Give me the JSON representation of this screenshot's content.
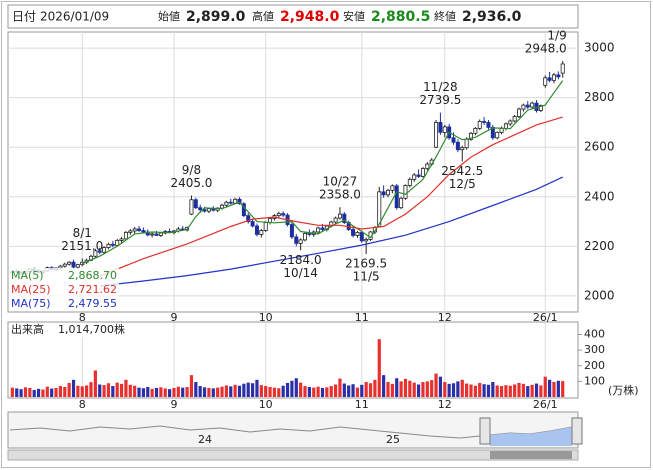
{
  "header": {
    "date_label": "日付",
    "date": "2026/01/09",
    "open_label": "始値",
    "open": "2,899.0",
    "high_label": "高値",
    "high": "2,948.0",
    "low_label": "安値",
    "low": "2,880.5",
    "close_label": "終値",
    "close": "2,936.0"
  },
  "chart_data": [
    {
      "type": "candlestick",
      "up_color": "#ffffff",
      "down_color": "#1c2f9e",
      "grid": true,
      "xlim": [
        -1,
        129.5
      ],
      "ylim": [
        1935,
        3065
      ],
      "yticks": [
        2000,
        2200,
        2400,
        2600,
        2800,
        3000
      ],
      "xticks": [
        {
          "value": 16,
          "label": "8"
        },
        {
          "value": 37,
          "label": "9"
        },
        {
          "value": 58,
          "label": "10"
        },
        {
          "value": 80,
          "label": "11"
        },
        {
          "value": 99,
          "label": "12"
        },
        {
          "value": 122,
          "label": "26/1"
        }
      ],
      "ohlc": [
        [
          2095,
          2105,
          2088,
          2100
        ],
        [
          2100,
          2110,
          2092,
          2096
        ],
        [
          2096,
          2104,
          2085,
          2090
        ],
        [
          2090,
          2102,
          2086,
          2098
        ],
        [
          2098,
          2112,
          2094,
          2108
        ],
        [
          2108,
          2115,
          2098,
          2102
        ],
        [
          2102,
          2108,
          2090,
          2094
        ],
        [
          2094,
          2104,
          2088,
          2100
        ],
        [
          2100,
          2118,
          2098,
          2114
        ],
        [
          2114,
          2120,
          2102,
          2106
        ],
        [
          2106,
          2116,
          2100,
          2112
        ],
        [
          2112,
          2125,
          2108,
          2120
        ],
        [
          2120,
          2134,
          2114,
          2128
        ],
        [
          2128,
          2140,
          2122,
          2136
        ],
        [
          2136,
          2146,
          2110,
          2116
        ],
        [
          2116,
          2130,
          2108,
          2126
        ],
        [
          2126,
          2151,
          2120,
          2136
        ],
        [
          2136,
          2150,
          2128,
          2144
        ],
        [
          2144,
          2166,
          2140,
          2160
        ],
        [
          2160,
          2190,
          2155,
          2182
        ],
        [
          2182,
          2194,
          2168,
          2176
        ],
        [
          2176,
          2200,
          2170,
          2195
        ],
        [
          2195,
          2215,
          2188,
          2208
        ],
        [
          2208,
          2222,
          2196,
          2204
        ],
        [
          2204,
          2230,
          2200,
          2224
        ],
        [
          2224,
          2238,
          2214,
          2230
        ],
        [
          2230,
          2262,
          2226,
          2256
        ],
        [
          2256,
          2270,
          2246,
          2262
        ],
        [
          2262,
          2278,
          2250,
          2270
        ],
        [
          2270,
          2282,
          2258,
          2264
        ],
        [
          2264,
          2276,
          2252,
          2258
        ],
        [
          2258,
          2268,
          2240,
          2246
        ],
        [
          2246,
          2256,
          2236,
          2250
        ],
        [
          2250,
          2262,
          2242,
          2244
        ],
        [
          2244,
          2258,
          2238,
          2254
        ],
        [
          2254,
          2266,
          2248,
          2260
        ],
        [
          2260,
          2272,
          2252,
          2256
        ],
        [
          2256,
          2266,
          2248,
          2262
        ],
        [
          2262,
          2278,
          2256,
          2270
        ],
        [
          2270,
          2282,
          2262,
          2266
        ],
        [
          2266,
          2280,
          2260,
          2276
        ],
        [
          2330,
          2405,
          2326,
          2388
        ],
        [
          2388,
          2396,
          2350,
          2356
        ],
        [
          2356,
          2368,
          2340,
          2348
        ],
        [
          2348,
          2360,
          2336,
          2342
        ],
        [
          2342,
          2356,
          2334,
          2352
        ],
        [
          2352,
          2362,
          2340,
          2346
        ],
        [
          2346,
          2358,
          2338,
          2354
        ],
        [
          2354,
          2372,
          2348,
          2366
        ],
        [
          2366,
          2384,
          2360,
          2378
        ],
        [
          2378,
          2392,
          2368,
          2374
        ],
        [
          2374,
          2396,
          2370,
          2390
        ],
        [
          2390,
          2398,
          2368,
          2372
        ],
        [
          2372,
          2378,
          2318,
          2324
        ],
        [
          2324,
          2334,
          2292,
          2300
        ],
        [
          2300,
          2312,
          2276,
          2282
        ],
        [
          2282,
          2292,
          2240,
          2248
        ],
        [
          2248,
          2270,
          2236,
          2264
        ],
        [
          2264,
          2300,
          2258,
          2296
        ],
        [
          2296,
          2318,
          2288,
          2312
        ],
        [
          2312,
          2330,
          2304,
          2324
        ],
        [
          2324,
          2340,
          2316,
          2332
        ],
        [
          2332,
          2342,
          2318,
          2326
        ],
        [
          2326,
          2334,
          2280,
          2288
        ],
        [
          2288,
          2296,
          2230,
          2238
        ],
        [
          2238,
          2250,
          2200,
          2212
        ],
        [
          2212,
          2232,
          2184,
          2226
        ],
        [
          2226,
          2258,
          2220,
          2252
        ],
        [
          2252,
          2268,
          2240,
          2248
        ],
        [
          2248,
          2264,
          2238,
          2258
        ],
        [
          2258,
          2280,
          2250,
          2274
        ],
        [
          2274,
          2290,
          2262,
          2268
        ],
        [
          2268,
          2286,
          2260,
          2282
        ],
        [
          2282,
          2304,
          2276,
          2298
        ],
        [
          2298,
          2320,
          2290,
          2314
        ],
        [
          2314,
          2358,
          2308,
          2330
        ],
        [
          2330,
          2338,
          2290,
          2296
        ],
        [
          2296,
          2304,
          2262,
          2268
        ],
        [
          2268,
          2280,
          2236,
          2244
        ],
        [
          2244,
          2262,
          2234,
          2256
        ],
        [
          2256,
          2264,
          2214,
          2222
        ],
        [
          2222,
          2236,
          2169.5,
          2228
        ],
        [
          2228,
          2262,
          2222,
          2258
        ],
        [
          2258,
          2282,
          2250,
          2276
        ],
        [
          2280,
          2440,
          2276,
          2420
        ],
        [
          2420,
          2446,
          2396,
          2408
        ],
        [
          2408,
          2432,
          2398,
          2426
        ],
        [
          2426,
          2450,
          2414,
          2444
        ],
        [
          2444,
          2452,
          2348,
          2356
        ],
        [
          2356,
          2400,
          2350,
          2394
        ],
        [
          2394,
          2450,
          2388,
          2446
        ],
        [
          2446,
          2478,
          2438,
          2470
        ],
        [
          2470,
          2496,
          2460,
          2488
        ],
        [
          2488,
          2510,
          2476,
          2482
        ],
        [
          2482,
          2520,
          2478,
          2514
        ],
        [
          2514,
          2540,
          2506,
          2532
        ],
        [
          2532,
          2556,
          2524,
          2548
        ],
        [
          2600,
          2710,
          2596,
          2700
        ],
        [
          2700,
          2739.5,
          2650,
          2660
        ],
        [
          2660,
          2690,
          2640,
          2682
        ],
        [
          2682,
          2694,
          2630,
          2638
        ],
        [
          2638,
          2660,
          2610,
          2620
        ],
        [
          2620,
          2632,
          2580,
          2590
        ],
        [
          2590,
          2606,
          2542.5,
          2598
        ],
        [
          2598,
          2640,
          2590,
          2632
        ],
        [
          2632,
          2662,
          2626,
          2656
        ],
        [
          2656,
          2682,
          2648,
          2676
        ],
        [
          2676,
          2712,
          2670,
          2704
        ],
        [
          2704,
          2722,
          2690,
          2700
        ],
        [
          2700,
          2710,
          2672,
          2680
        ],
        [
          2680,
          2690,
          2630,
          2638
        ],
        [
          2638,
          2664,
          2632,
          2660
        ],
        [
          2660,
          2684,
          2652,
          2676
        ],
        [
          2676,
          2700,
          2668,
          2694
        ],
        [
          2694,
          2712,
          2686,
          2706
        ],
        [
          2706,
          2730,
          2700,
          2724
        ],
        [
          2724,
          2760,
          2718,
          2754
        ],
        [
          2754,
          2776,
          2744,
          2770
        ],
        [
          2770,
          2786,
          2754,
          2762
        ],
        [
          2762,
          2784,
          2756,
          2778
        ],
        [
          2778,
          2790,
          2740,
          2748
        ],
        [
          2748,
          2772,
          2742,
          2768
        ],
        [
          2850,
          2890,
          2840,
          2880
        ],
        [
          2880,
          2904,
          2862,
          2870
        ],
        [
          2870,
          2900,
          2858,
          2892
        ],
        [
          2892,
          2906,
          2874,
          2884
        ],
        [
          2899,
          2948,
          2880.5,
          2936
        ]
      ],
      "series": [
        {
          "name": "MA(5)",
          "color": "#2e8b2e",
          "last_label": "2,868.70",
          "x": [
            16,
            20,
            24,
            28,
            32,
            36,
            40,
            42,
            44,
            48,
            52,
            56,
            60,
            64,
            66,
            70,
            74,
            76,
            80,
            82,
            84,
            88,
            90,
            94,
            97,
            100,
            103,
            106,
            110,
            114,
            118,
            122,
            124,
            126
          ],
          "values": [
            2130,
            2160,
            2200,
            2250,
            2258,
            2255,
            2268,
            2320,
            2355,
            2352,
            2378,
            2300,
            2295,
            2300,
            2260,
            2250,
            2290,
            2305,
            2260,
            2235,
            2290,
            2420,
            2410,
            2470,
            2560,
            2660,
            2630,
            2640,
            2678,
            2675,
            2750,
            2770,
            2820,
            2868.7
          ]
        },
        {
          "name": "MA(25)",
          "color": "#e0302a",
          "last_label": "2,721.62",
          "x": [
            20,
            30,
            40,
            50,
            55,
            60,
            65,
            70,
            75,
            80,
            85,
            90,
            95,
            100,
            105,
            110,
            115,
            120,
            126
          ],
          "values": [
            2080,
            2150,
            2210,
            2280,
            2310,
            2318,
            2300,
            2285,
            2285,
            2270,
            2280,
            2330,
            2400,
            2490,
            2560,
            2610,
            2650,
            2690,
            2721.62
          ]
        },
        {
          "name": "MA(75)",
          "color": "#2232c8",
          "last_label": "2,479.55",
          "x": [
            20,
            30,
            40,
            50,
            60,
            70,
            80,
            90,
            100,
            110,
            120,
            126
          ],
          "values": [
            2040,
            2060,
            2082,
            2108,
            2140,
            2172,
            2205,
            2245,
            2300,
            2365,
            2430,
            2479.55
          ]
        }
      ],
      "annotations": [
        {
          "index": 16,
          "date": "8/1",
          "price": {
            "value": 2151,
            "label": "2151.0"
          }
        },
        {
          "index": 41,
          "date": "9/8",
          "price": {
            "value": 2405,
            "label": "2405.0"
          }
        },
        {
          "index": 66,
          "date": "10/14",
          "price": {
            "value": 2184,
            "label": "2184.0"
          }
        },
        {
          "index": 75,
          "date": "10/27",
          "price": {
            "value": 2358,
            "label": "2358.0"
          }
        },
        {
          "index": 81,
          "date": "11/5",
          "price": {
            "value": 2169.5,
            "label": "2169.5"
          }
        },
        {
          "index": 98,
          "date": "11/28",
          "price": {
            "value": 2739.5,
            "label": "2739.5"
          }
        },
        {
          "index": 103,
          "date": "12/5",
          "price": {
            "value": 2542.5,
            "label": "2542.5"
          }
        },
        {
          "index": 126,
          "date": "1/9",
          "price": {
            "value": 2948,
            "label": "2948.0"
          }
        }
      ]
    },
    {
      "type": "bar",
      "title": "出来高",
      "total_label": "1,014,700株",
      "unit": "(万株)",
      "up_color": "#e8312f",
      "down_color": "#2b2fa8",
      "ylim": [
        0,
        480
      ],
      "yticks": [
        100,
        200,
        300,
        400
      ],
      "values": [
        60,
        55,
        50,
        62,
        58,
        45,
        52,
        48,
        66,
        54,
        58,
        70,
        64,
        90,
        110,
        72,
        68,
        74,
        95,
        170,
        80,
        76,
        88,
        70,
        92,
        84,
        110,
        78,
        72,
        60,
        56,
        64,
        52,
        58,
        62,
        55,
        50,
        58,
        66,
        60,
        64,
        140,
        96,
        70,
        62,
        58,
        55,
        60,
        66,
        74,
        68,
        78,
        72,
        85,
        92,
        88,
        110,
        76,
        70,
        64,
        60,
        56,
        72,
        90,
        104,
        120,
        92,
        70,
        64,
        60,
        66,
        58,
        62,
        70,
        80,
        118,
        86,
        74,
        82,
        60,
        78,
        96,
        88,
        110,
        370,
        140,
        96,
        84,
        120,
        100,
        116,
        104,
        92,
        80,
        96,
        100,
        108,
        150,
        130,
        96,
        84,
        88,
        100,
        110,
        86,
        80,
        72,
        90,
        82,
        78,
        96,
        74,
        70,
        76,
        72,
        80,
        90,
        84,
        70,
        78,
        86,
        74,
        130,
        110,
        96,
        104,
        101.47
      ]
    }
  ],
  "navigator": {
    "labels": [
      "24",
      "25"
    ]
  }
}
